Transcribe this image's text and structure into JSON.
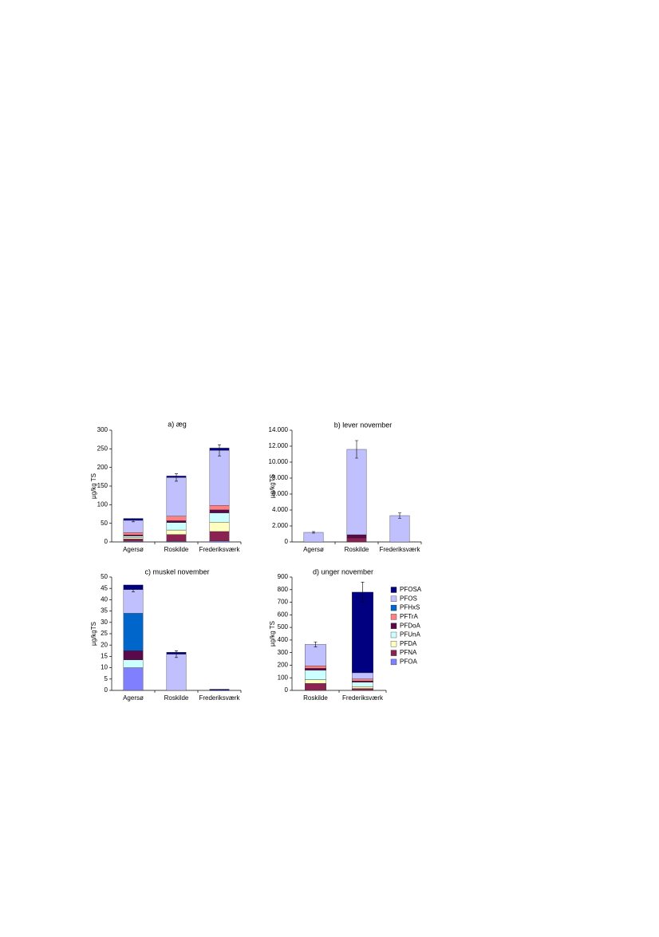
{
  "chart_data": [
    {
      "type": "bar",
      "stacked": true,
      "title": "a) æg",
      "ylabel": "µg/kg TS",
      "categories": [
        "Agersø",
        "Roskilde",
        "Frederiksværk"
      ],
      "ylim": [
        0,
        300
      ],
      "yticks": [
        0,
        50,
        100,
        150,
        200,
        250,
        300
      ],
      "series": [
        {
          "color": "#8080ff",
          "values": [
            2,
            2,
            3
          ]
        },
        {
          "color": "#8b2252",
          "values": [
            6,
            18,
            25
          ]
        },
        {
          "color": "#ffffc0",
          "values": [
            4,
            12,
            25
          ]
        },
        {
          "color": "#ccffff",
          "values": [
            4,
            20,
            25
          ]
        },
        {
          "color": "#5a0a4a",
          "values": [
            3,
            5,
            8
          ]
        },
        {
          "color": "#ff8080",
          "values": [
            6,
            12,
            12
          ]
        },
        {
          "color": "#0066cc",
          "values": [
            0,
            0,
            0
          ]
        },
        {
          "color": "#c0c0ff",
          "values": [
            33,
            104,
            148
          ],
          "errors": [
            4,
            10,
            15
          ]
        },
        {
          "color": "#000080",
          "values": [
            5,
            4,
            6
          ]
        }
      ]
    },
    {
      "type": "bar",
      "stacked": true,
      "title": "b) lever november",
      "ylabel": "µg/kgTS",
      "categories": [
        "Agersø",
        "Roskilde",
        "Frederiksværk"
      ],
      "ylim": [
        0,
        14000
      ],
      "yticks": [
        0,
        {
          "value": 2000,
          "label": "2.000"
        },
        {
          "value": 4000,
          "label": "4.000"
        },
        {
          "value": 6000,
          "label": "6.000"
        },
        {
          "value": 8000,
          "label": "8.000"
        },
        {
          "value": 10000,
          "label": "10.000"
        },
        {
          "value": 12000,
          "label": "12.000"
        },
        {
          "value": 14000,
          "label": "14.000"
        }
      ],
      "series": [
        {
          "color": "#8080ff",
          "values": [
            0,
            0,
            0
          ]
        },
        {
          "color": "#8b2252",
          "values": [
            0,
            500,
            0
          ]
        },
        {
          "color": "#ffffc0",
          "values": [
            0,
            0,
            0
          ]
        },
        {
          "color": "#ccffff",
          "values": [
            0,
            0,
            0
          ]
        },
        {
          "color": "#5a0a4a",
          "values": [
            0,
            400,
            0
          ]
        },
        {
          "color": "#ff8080",
          "values": [
            0,
            0,
            0
          ]
        },
        {
          "color": "#0066cc",
          "values": [
            0,
            0,
            0
          ]
        },
        {
          "color": "#c0c0ff",
          "values": [
            1200,
            10700,
            3300
          ],
          "errors": [
            100,
            1100,
            350
          ]
        },
        {
          "color": "#000080",
          "values": [
            0,
            0,
            0
          ]
        }
      ]
    },
    {
      "type": "bar",
      "stacked": true,
      "title": "c) muskel november",
      "ylabel": "µg/kgTS",
      "categories": [
        "Agersø",
        "Roskilde",
        "Frederiksværk"
      ],
      "ylim": [
        0,
        50
      ],
      "yticks": [
        0,
        5,
        10,
        15,
        20,
        25,
        30,
        35,
        40,
        45,
        50
      ],
      "series": [
        {
          "color": "#8080ff",
          "values": [
            10,
            0,
            0
          ]
        },
        {
          "color": "#8b2252",
          "values": [
            0,
            0,
            0
          ]
        },
        {
          "color": "#ffffc0",
          "values": [
            0,
            0,
            0
          ]
        },
        {
          "color": "#ccffff",
          "values": [
            3.5,
            0,
            0
          ]
        },
        {
          "color": "#5a0a4a",
          "values": [
            4,
            0,
            0
          ]
        },
        {
          "color": "#ff8080",
          "values": [
            0,
            0,
            0
          ]
        },
        {
          "color": "#0066cc",
          "values": [
            16.5,
            0,
            0
          ]
        },
        {
          "color": "#c0c0ff",
          "values": [
            10.5,
            16,
            0
          ],
          "errors": [
            1,
            1.5,
            null
          ]
        },
        {
          "color": "#000080",
          "values": [
            2,
            0.8,
            0.5
          ]
        }
      ]
    },
    {
      "type": "bar",
      "stacked": true,
      "title": "d) unger november",
      "ylabel": "µg/kg TS",
      "legend": "right",
      "categories": [
        "Roskilde",
        "Frederiksværk"
      ],
      "ylim": [
        0,
        900
      ],
      "yticks": [
        0,
        100,
        200,
        300,
        400,
        500,
        600,
        700,
        800,
        900
      ],
      "series": [
        {
          "name": "PFOA",
          "color": "#8080ff",
          "values": [
            0,
            0
          ]
        },
        {
          "name": "PFNA",
          "color": "#8b2252",
          "values": [
            55,
            15
          ]
        },
        {
          "name": "PFDA",
          "color": "#ffffc0",
          "values": [
            30,
            15
          ]
        },
        {
          "name": "PFUnA",
          "color": "#ccffff",
          "values": [
            75,
            35
          ]
        },
        {
          "name": "PFDoA",
          "color": "#5a0a4a",
          "values": [
            15,
            10
          ]
        },
        {
          "name": "PFTrA",
          "color": "#ff8080",
          "values": [
            20,
            15
          ]
        },
        {
          "name": "PFHxS",
          "color": "#0066cc",
          "values": [
            0,
            0
          ]
        },
        {
          "name": "PFOS",
          "color": "#c0c0ff",
          "values": [
            170,
            50
          ],
          "errors": [
            20,
            null
          ]
        },
        {
          "name": "PFOSA",
          "color": "#000080",
          "values": [
            0,
            640
          ],
          "errors": [
            null,
            80
          ]
        }
      ]
    }
  ]
}
